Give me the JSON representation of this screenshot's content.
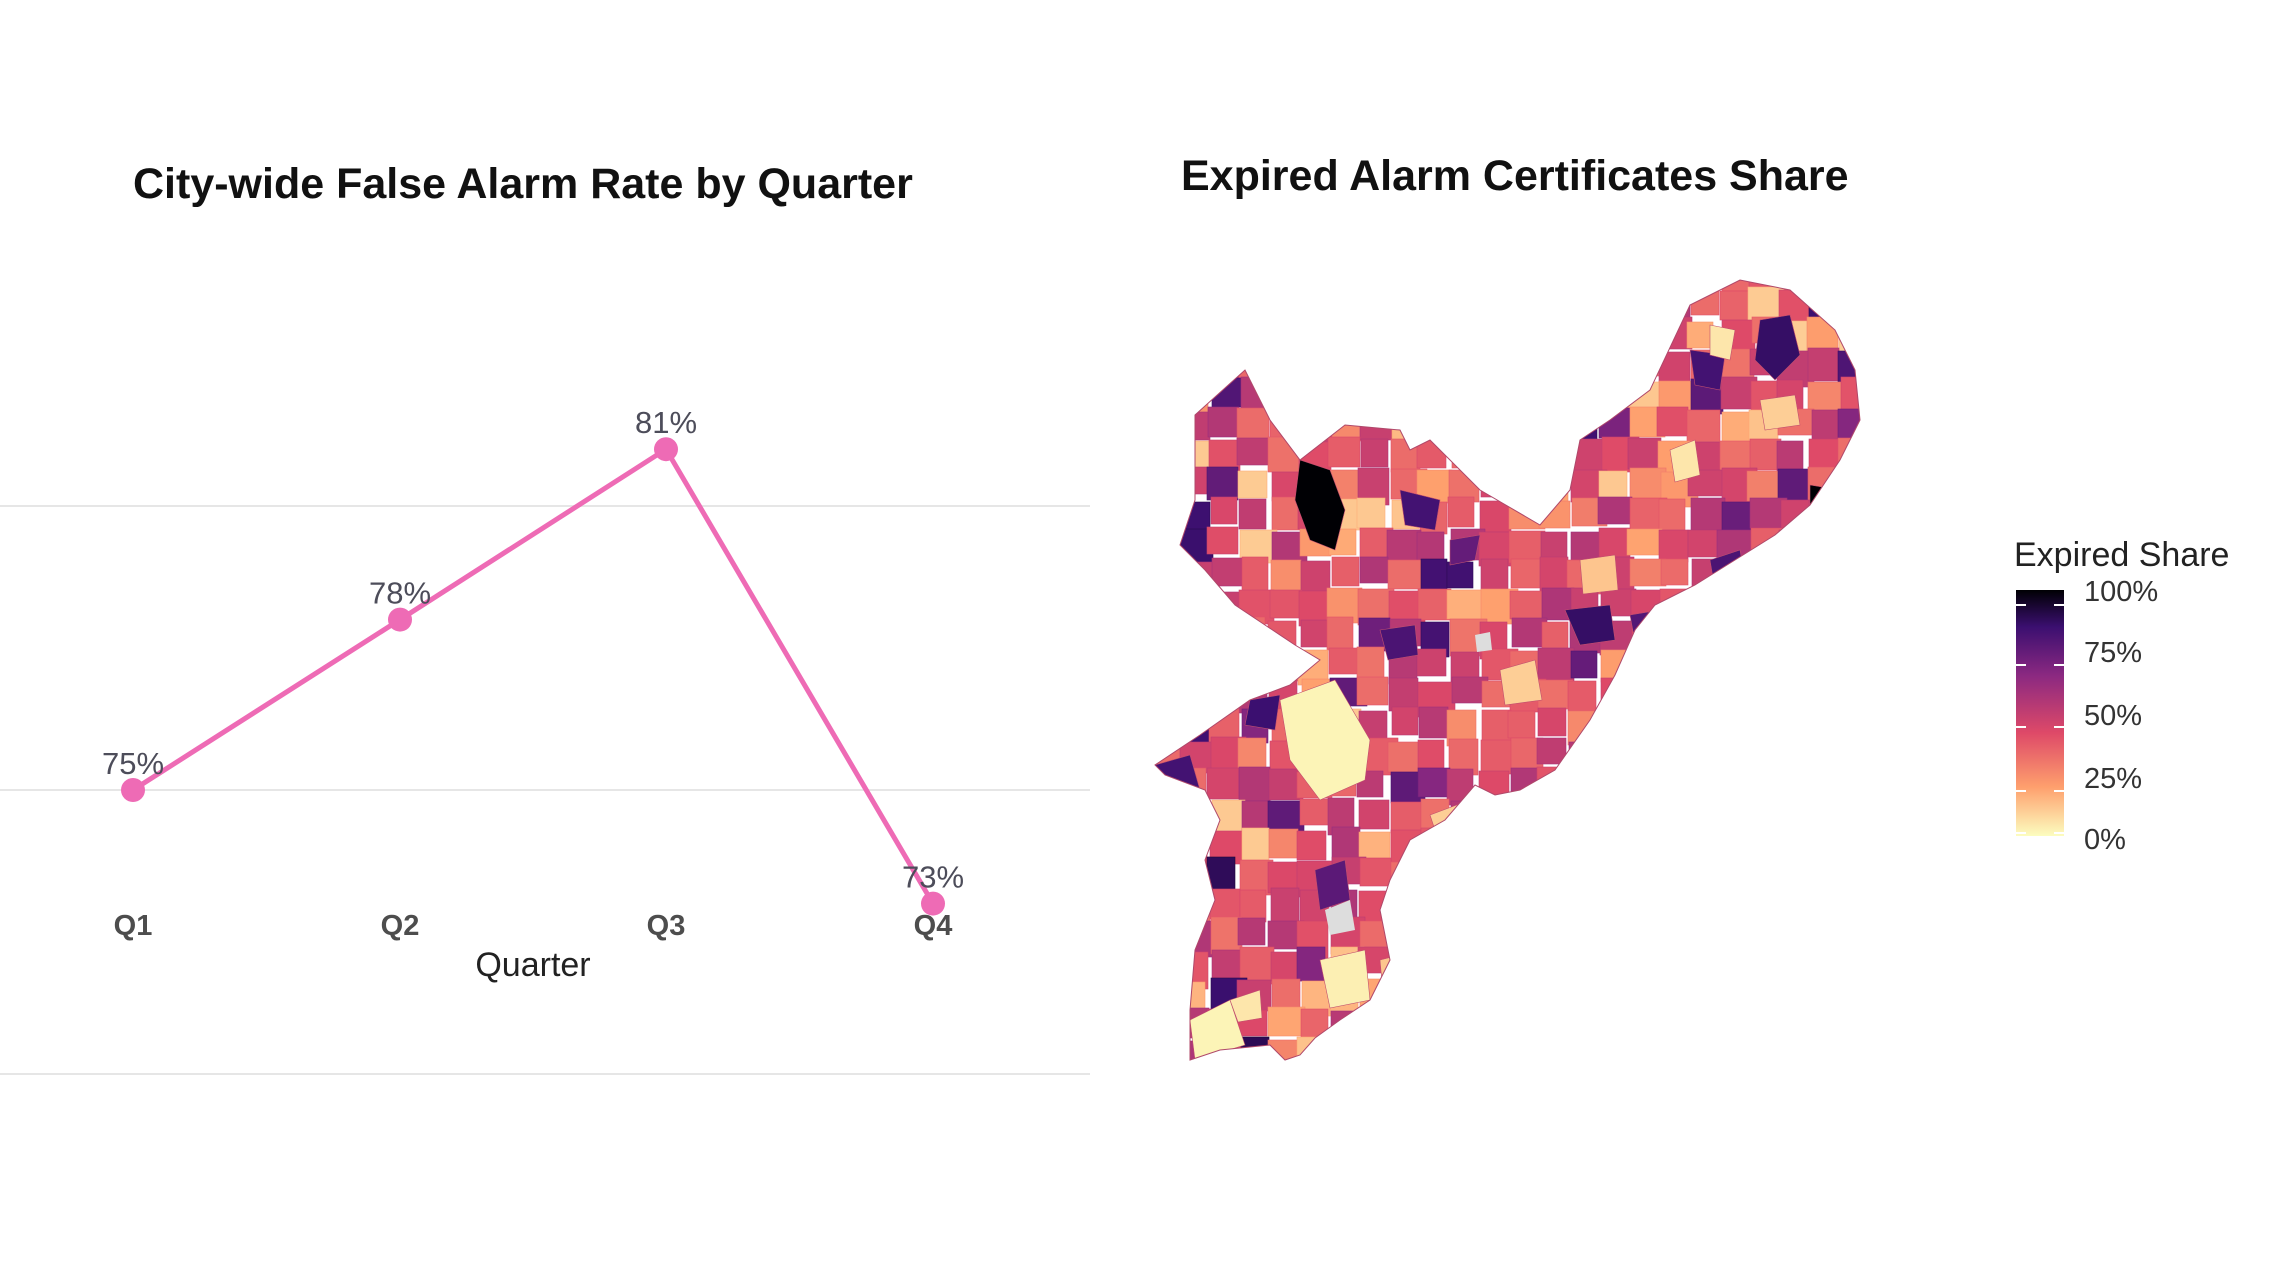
{
  "chart_data": [
    {
      "type": "line",
      "title": "City-wide False Alarm Rate by Quarter",
      "xlabel": "Quarter",
      "ylabel": "",
      "categories": [
        "Q1",
        "Q2",
        "Q3",
        "Q4"
      ],
      "series": [
        {
          "values": [
            75,
            78,
            81,
            73
          ],
          "labels": [
            "75%",
            "78%",
            "81%",
            "73%"
          ],
          "color": "#ee6bb5"
        }
      ],
      "ylim": [
        70,
        85
      ],
      "grid": true,
      "legend": "none"
    },
    {
      "type": "heatmap",
      "title": "Expired Alarm Certificates Share",
      "subtype": "choropleth-map",
      "legend": {
        "title": "Expired Share",
        "labels": [
          "100%",
          "75%",
          "50%",
          "25%",
          "0%"
        ],
        "placement": "right"
      },
      "color_scale": [
        "#fcfdbf",
        "#fe9f6d",
        "#de4968",
        "#8c2981",
        "#3b0f70",
        "#000004"
      ],
      "missing_color": "#dddddd"
    }
  ]
}
